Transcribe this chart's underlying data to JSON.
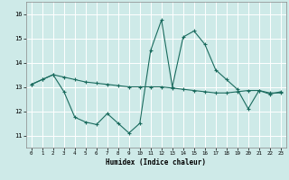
{
  "xlabel": "Humidex (Indice chaleur)",
  "background_color": "#ceeae8",
  "grid_color": "#ffffff",
  "line_color": "#1a6b5e",
  "xlim": [
    -0.5,
    23.5
  ],
  "ylim": [
    10.5,
    16.5
  ],
  "yticks": [
    11,
    12,
    13,
    14,
    15,
    16
  ],
  "xticks": [
    0,
    1,
    2,
    3,
    4,
    5,
    6,
    7,
    8,
    9,
    10,
    11,
    12,
    13,
    14,
    15,
    16,
    17,
    18,
    19,
    20,
    21,
    22,
    23
  ],
  "line1_x": [
    0,
    1,
    2,
    3,
    4,
    5,
    6,
    7,
    8,
    9,
    10,
    11,
    12,
    13,
    14,
    15,
    16,
    17,
    18,
    19,
    20,
    21,
    22,
    23
  ],
  "line1_y": [
    13.1,
    13.3,
    13.5,
    13.4,
    13.3,
    13.2,
    13.15,
    13.1,
    13.05,
    13.0,
    13.0,
    13.0,
    13.0,
    12.95,
    12.9,
    12.85,
    12.8,
    12.75,
    12.75,
    12.8,
    12.85,
    12.85,
    12.75,
    12.75
  ],
  "line2_x": [
    0,
    1,
    2,
    3,
    4,
    5,
    6,
    7,
    8,
    9,
    10,
    11,
    12,
    13,
    14,
    15,
    16,
    17,
    18,
    19,
    20,
    21,
    22,
    23
  ],
  "line2_y": [
    13.1,
    13.3,
    13.5,
    12.8,
    11.75,
    11.55,
    11.45,
    11.9,
    11.5,
    11.1,
    11.5,
    14.5,
    15.75,
    13.0,
    15.05,
    15.3,
    14.75,
    13.7,
    13.3,
    12.9,
    12.1,
    12.85,
    12.7,
    12.8
  ]
}
